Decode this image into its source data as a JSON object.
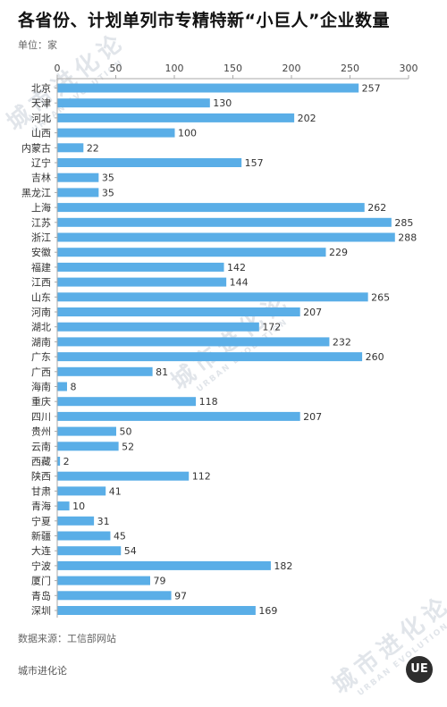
{
  "title": "各省份、计划单列市专精特新“小巨人”企业数量",
  "unit_label": "单位：家",
  "source": "数据来源：工信部网站",
  "brand": "城市进化论",
  "watermark": {
    "cn": "城市进化论",
    "en": "URBAN EVOLUTION"
  },
  "logo_text": "UE",
  "chart_data": {
    "type": "bar",
    "orientation": "horizontal",
    "xlim": [
      0,
      300
    ],
    "x_ticks": [
      0,
      50,
      100,
      150,
      200,
      250,
      300
    ],
    "x_axis_position": "top",
    "grid": false,
    "bar_color": "#5aaee7",
    "categories": [
      "北京",
      "天津",
      "河北",
      "山西",
      "内蒙古",
      "辽宁",
      "吉林",
      "黑龙江",
      "上海",
      "江苏",
      "浙江",
      "安徽",
      "福建",
      "江西",
      "山东",
      "河南",
      "湖北",
      "湖南",
      "广东",
      "广西",
      "海南",
      "重庆",
      "四川",
      "贵州",
      "云南",
      "西藏",
      "陕西",
      "甘肃",
      "青海",
      "宁夏",
      "新疆",
      "大连",
      "宁波",
      "厦门",
      "青岛",
      "深圳"
    ],
    "values": [
      257,
      130,
      202,
      100,
      22,
      157,
      35,
      35,
      262,
      285,
      288,
      229,
      142,
      144,
      265,
      207,
      172,
      232,
      260,
      81,
      8,
      118,
      207,
      50,
      52,
      2,
      112,
      41,
      10,
      31,
      45,
      54,
      182,
      79,
      97,
      169
    ]
  }
}
